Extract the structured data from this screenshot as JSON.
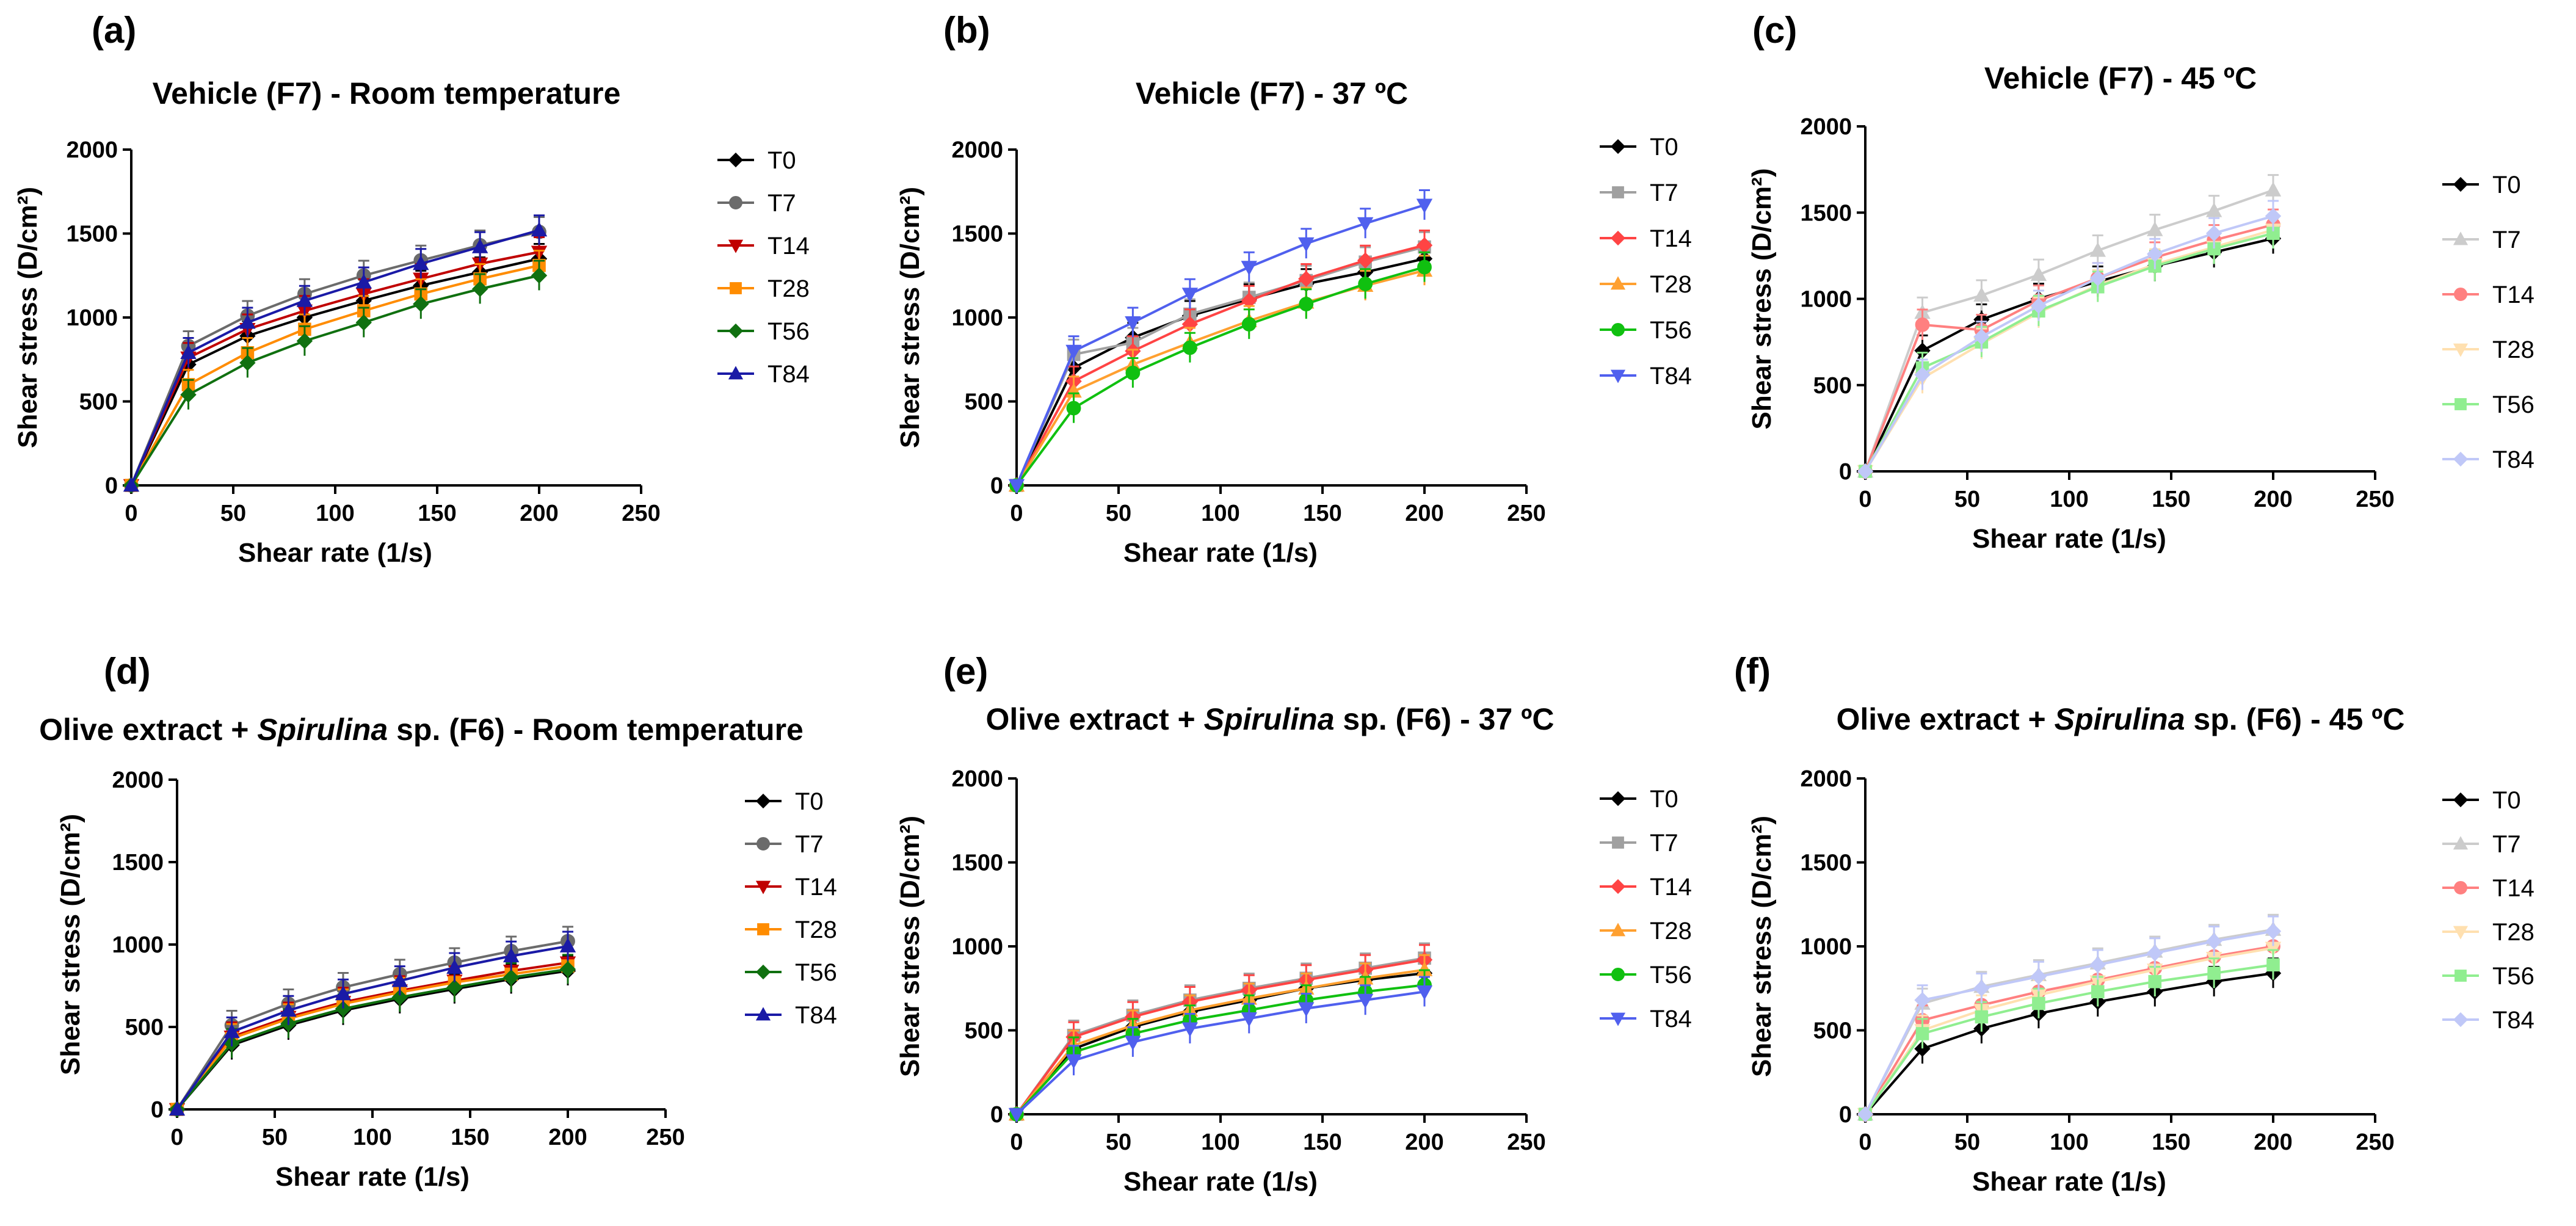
{
  "figure": {
    "description_free": true
  },
  "chart_data": [
    {
      "panel": "(a)",
      "type": "line",
      "title": "Vehicle (F7) - Room temperature",
      "title_parts": [
        {
          "text": "Vehicle (F7) - Room temperature",
          "italic": false
        }
      ],
      "xlabel": "Shear rate (1/s)",
      "ylabel": "Shear stress (D/cm²)",
      "xlim": [
        0,
        250
      ],
      "ylim": [
        0,
        2000
      ],
      "xticks": [
        0,
        50,
        100,
        150,
        200,
        250
      ],
      "yticks": [
        0,
        500,
        1000,
        1500,
        2000
      ],
      "x": [
        0,
        28,
        57,
        85,
        114,
        142,
        171,
        200
      ],
      "series": [
        {
          "name": "T0",
          "color": "#000000",
          "marker": "diamond",
          "values": [
            0,
            720,
            890,
            1000,
            1100,
            1190,
            1270,
            1350
          ]
        },
        {
          "name": "T7",
          "color": "#6b6b6b",
          "marker": "circle",
          "values": [
            0,
            830,
            1010,
            1140,
            1250,
            1340,
            1430,
            1510
          ]
        },
        {
          "name": "T14",
          "color": "#c00000",
          "marker": "tri-down",
          "values": [
            0,
            760,
            930,
            1040,
            1140,
            1230,
            1320,
            1390
          ]
        },
        {
          "name": "T28",
          "color": "#ff8c00",
          "marker": "square",
          "values": [
            0,
            600,
            790,
            930,
            1040,
            1140,
            1230,
            1310
          ]
        },
        {
          "name": "T56",
          "color": "#107010",
          "marker": "diamond",
          "values": [
            0,
            540,
            730,
            860,
            970,
            1080,
            1170,
            1250
          ]
        },
        {
          "name": "T84",
          "color": "#1a1aa6",
          "marker": "tri-up",
          "values": [
            0,
            790,
            970,
            1100,
            1210,
            1320,
            1420,
            1520
          ]
        }
      ]
    },
    {
      "panel": "(b)",
      "type": "line",
      "title": "Vehicle (F7) - 37 ºC",
      "title_parts": [
        {
          "text": "Vehicle (F7) - 37 ºC",
          "italic": false
        }
      ],
      "xlabel": "Shear rate (1/s)",
      "ylabel": "Shear stress (D/cm²)",
      "xlim": [
        0,
        250
      ],
      "ylim": [
        0,
        2000
      ],
      "xticks": [
        0,
        50,
        100,
        150,
        200,
        250
      ],
      "yticks": [
        0,
        500,
        1000,
        1500,
        2000
      ],
      "x": [
        0,
        28,
        57,
        85,
        114,
        142,
        171,
        200
      ],
      "series": [
        {
          "name": "T0",
          "color": "#000000",
          "marker": "diamond",
          "values": [
            0,
            700,
            880,
            1010,
            1110,
            1200,
            1270,
            1350
          ]
        },
        {
          "name": "T7",
          "color": "#a0a0a0",
          "marker": "square",
          "values": [
            0,
            780,
            850,
            1020,
            1120,
            1220,
            1330,
            1420
          ]
        },
        {
          "name": "T14",
          "color": "#ff4444",
          "marker": "diamond",
          "values": [
            0,
            620,
            800,
            960,
            1100,
            1230,
            1340,
            1430
          ]
        },
        {
          "name": "T28",
          "color": "#ffa030",
          "marker": "tri-up",
          "values": [
            0,
            560,
            720,
            850,
            980,
            1090,
            1190,
            1280
          ]
        },
        {
          "name": "T56",
          "color": "#10c010",
          "marker": "circle",
          "values": [
            0,
            460,
            670,
            820,
            960,
            1080,
            1200,
            1300
          ]
        },
        {
          "name": "T84",
          "color": "#5060ee",
          "marker": "tri-down",
          "values": [
            0,
            800,
            970,
            1140,
            1300,
            1440,
            1560,
            1670
          ]
        }
      ]
    },
    {
      "panel": "(c)",
      "type": "line",
      "title": "Vehicle (F7) - 45 ºC",
      "title_parts": [
        {
          "text": "Vehicle (F7) - 45 ºC",
          "italic": false
        }
      ],
      "xlabel": "Shear rate (1/s)",
      "ylabel": "Shear stress (D/cm²)",
      "xlim": [
        0,
        250
      ],
      "ylim": [
        0,
        2000
      ],
      "xticks": [
        0,
        50,
        100,
        150,
        200,
        250
      ],
      "yticks": [
        0,
        500,
        1000,
        1500,
        2000
      ],
      "x": [
        0,
        28,
        57,
        85,
        114,
        142,
        171,
        200
      ],
      "series": [
        {
          "name": "T0",
          "color": "#000000",
          "marker": "diamond",
          "values": [
            0,
            700,
            880,
            1000,
            1100,
            1190,
            1270,
            1350
          ]
        },
        {
          "name": "T7",
          "color": "#cccccc",
          "marker": "tri-up",
          "values": [
            0,
            920,
            1020,
            1140,
            1280,
            1400,
            1510,
            1630
          ]
        },
        {
          "name": "T14",
          "color": "#ff8080",
          "marker": "circle",
          "values": [
            0,
            850,
            820,
            990,
            1120,
            1240,
            1340,
            1430
          ]
        },
        {
          "name": "T28",
          "color": "#ffe0b0",
          "marker": "tri-down",
          "values": [
            0,
            540,
            740,
            920,
            1080,
            1200,
            1300,
            1400
          ]
        },
        {
          "name": "T56",
          "color": "#90ee90",
          "marker": "square",
          "values": [
            0,
            600,
            750,
            930,
            1070,
            1190,
            1290,
            1380
          ]
        },
        {
          "name": "T84",
          "color": "#c0c8f8",
          "marker": "diamond",
          "values": [
            0,
            560,
            780,
            960,
            1120,
            1260,
            1380,
            1480
          ]
        }
      ]
    },
    {
      "panel": "(d)",
      "type": "line",
      "title": "Olive extract + Spirulina sp. (F6) - Room temperature",
      "title_parts": [
        {
          "text": "Olive extract + ",
          "italic": false
        },
        {
          "text": "Spirulina",
          "italic": true
        },
        {
          "text": " sp. (F6) - Room temperature",
          "italic": false
        }
      ],
      "xlabel": "Shear rate (1/s)",
      "ylabel": "Shear stress (D/cm²)",
      "xlim": [
        0,
        250
      ],
      "ylim": [
        0,
        2000
      ],
      "xticks": [
        0,
        50,
        100,
        150,
        200,
        250
      ],
      "yticks": [
        0,
        500,
        1000,
        1500,
        2000
      ],
      "x": [
        0,
        28,
        57,
        85,
        114,
        142,
        171,
        200
      ],
      "series": [
        {
          "name": "T0",
          "color": "#000000",
          "marker": "diamond",
          "values": [
            0,
            390,
            510,
            600,
            670,
            730,
            790,
            840
          ]
        },
        {
          "name": "T7",
          "color": "#6b6b6b",
          "marker": "circle",
          "values": [
            0,
            510,
            640,
            740,
            820,
            890,
            960,
            1020
          ]
        },
        {
          "name": "T14",
          "color": "#c00000",
          "marker": "tri-down",
          "values": [
            0,
            440,
            560,
            650,
            720,
            780,
            840,
            890
          ]
        },
        {
          "name": "T28",
          "color": "#ff8c00",
          "marker": "square",
          "values": [
            0,
            430,
            550,
            640,
            710,
            770,
            820,
            870
          ]
        },
        {
          "name": "T56",
          "color": "#107010",
          "marker": "diamond",
          "values": [
            0,
            400,
            520,
            610,
            680,
            740,
            800,
            850
          ]
        },
        {
          "name": "T84",
          "color": "#1a1aa6",
          "marker": "tri-up",
          "values": [
            0,
            470,
            600,
            700,
            780,
            860,
            930,
            990
          ]
        }
      ]
    },
    {
      "panel": "(e)",
      "type": "line",
      "title": "Olive extract + Spirulina sp. (F6) - 37 ºC",
      "title_parts": [
        {
          "text": "Olive extract + ",
          "italic": false
        },
        {
          "text": "Spirulina",
          "italic": true
        },
        {
          "text": " sp. (F6) - 37 ºC",
          "italic": false
        }
      ],
      "xlabel": "Shear rate (1/s)",
      "ylabel": "Shear stress (D/cm²)",
      "xlim": [
        0,
        250
      ],
      "ylim": [
        0,
        2000
      ],
      "xticks": [
        0,
        50,
        100,
        150,
        200,
        250
      ],
      "yticks": [
        0,
        500,
        1000,
        1500,
        2000
      ],
      "x": [
        0,
        28,
        57,
        85,
        114,
        142,
        171,
        200
      ],
      "series": [
        {
          "name": "T0",
          "color": "#000000",
          "marker": "diamond",
          "values": [
            0,
            390,
            520,
            610,
            680,
            750,
            800,
            840
          ]
        },
        {
          "name": "T7",
          "color": "#a0a0a0",
          "marker": "square",
          "values": [
            0,
            470,
            590,
            680,
            750,
            810,
            870,
            930
          ]
        },
        {
          "name": "T14",
          "color": "#ff4444",
          "marker": "diamond",
          "values": [
            0,
            460,
            580,
            670,
            740,
            800,
            860,
            920
          ]
        },
        {
          "name": "T28",
          "color": "#ffa030",
          "marker": "tri-up",
          "values": [
            0,
            410,
            530,
            620,
            690,
            750,
            810,
            860
          ]
        },
        {
          "name": "T56",
          "color": "#10c010",
          "marker": "circle",
          "values": [
            0,
            370,
            480,
            560,
            620,
            680,
            730,
            770
          ]
        },
        {
          "name": "T84",
          "color": "#5060ee",
          "marker": "tri-down",
          "values": [
            0,
            320,
            430,
            510,
            570,
            630,
            680,
            730
          ]
        }
      ]
    },
    {
      "panel": "(f)",
      "type": "line",
      "title": "Olive extract + Spirulina sp. (F6) - 45 ºC",
      "title_parts": [
        {
          "text": "Olive extract + ",
          "italic": false
        },
        {
          "text": "Spirulina",
          "italic": true
        },
        {
          "text": " sp. (F6) - 45 ºC",
          "italic": false
        }
      ],
      "xlabel": "Shear rate (1/s)",
      "ylabel": "Shear stress (D/cm²)",
      "xlim": [
        0,
        250
      ],
      "ylim": [
        0,
        2000
      ],
      "xticks": [
        0,
        50,
        100,
        150,
        200,
        250
      ],
      "yticks": [
        0,
        500,
        1000,
        1500,
        2000
      ],
      "x": [
        0,
        28,
        57,
        85,
        114,
        142,
        171,
        200
      ],
      "series": [
        {
          "name": "T0",
          "color": "#000000",
          "marker": "diamond",
          "values": [
            0,
            390,
            510,
            600,
            670,
            730,
            790,
            840
          ]
        },
        {
          "name": "T7",
          "color": "#cccccc",
          "marker": "tri-up",
          "values": [
            0,
            660,
            760,
            830,
            900,
            970,
            1040,
            1100
          ]
        },
        {
          "name": "T14",
          "color": "#ff8080",
          "marker": "circle",
          "values": [
            0,
            560,
            650,
            730,
            800,
            870,
            940,
            1000
          ]
        },
        {
          "name": "T28",
          "color": "#ffe0b0",
          "marker": "tri-down",
          "values": [
            0,
            500,
            620,
            710,
            790,
            860,
            930,
            990
          ]
        },
        {
          "name": "T56",
          "color": "#90ee90",
          "marker": "square",
          "values": [
            0,
            480,
            580,
            660,
            730,
            790,
            840,
            890
          ]
        },
        {
          "name": "T84",
          "color": "#c0c8f8",
          "marker": "diamond",
          "values": [
            0,
            680,
            750,
            820,
            890,
            960,
            1030,
            1090
          ]
        }
      ]
    }
  ]
}
